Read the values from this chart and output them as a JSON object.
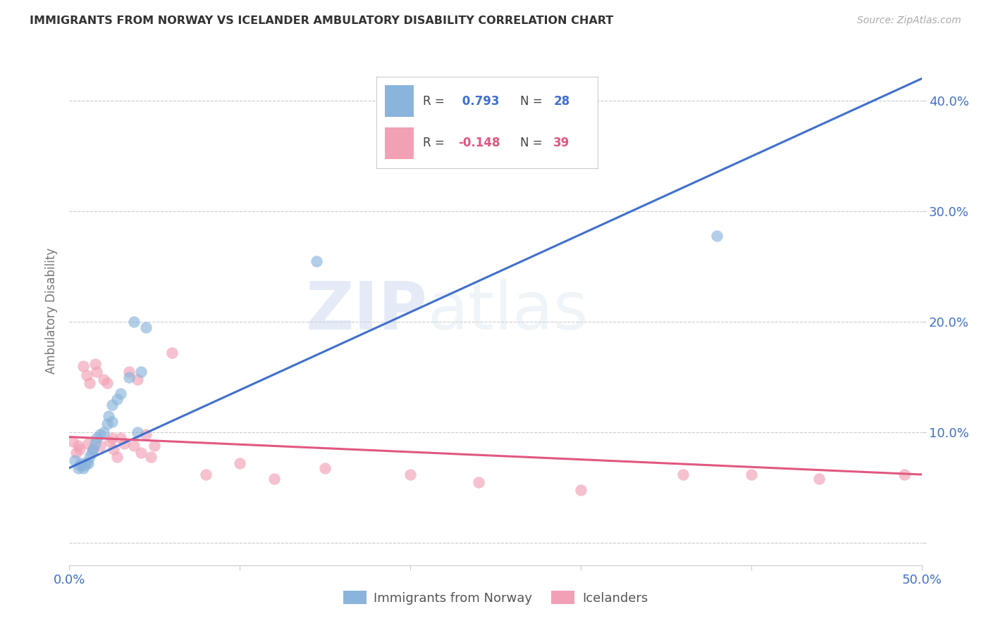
{
  "title": "IMMIGRANTS FROM NORWAY VS ICELANDER AMBULATORY DISABILITY CORRELATION CHART",
  "source": "Source: ZipAtlas.com",
  "ylabel": "Ambulatory Disability",
  "xlim": [
    0,
    0.5
  ],
  "ylim": [
    -0.02,
    0.44
  ],
  "xticks": [
    0.0,
    0.1,
    0.2,
    0.3,
    0.4,
    0.5
  ],
  "yticks": [
    0.0,
    0.1,
    0.2,
    0.3,
    0.4
  ],
  "xticklabels": [
    "0.0%",
    "",
    "",
    "",
    "",
    "50.0%"
  ],
  "yticklabels_right": [
    "",
    "10.0%",
    "20.0%",
    "30.0%",
    "40.0%"
  ],
  "norway_color": "#8ab4db",
  "iceland_color": "#f2a0b5",
  "norway_line_color": "#4070cc",
  "iceland_line_color": "#e05880",
  "norway_scatter_x": [
    0.003,
    0.005,
    0.006,
    0.007,
    0.008,
    0.009,
    0.01,
    0.011,
    0.012,
    0.013,
    0.014,
    0.015,
    0.016,
    0.018,
    0.02,
    0.022,
    0.023,
    0.025,
    0.025,
    0.028,
    0.03,
    0.035,
    0.038,
    0.04,
    0.042,
    0.045,
    0.145,
    0.38
  ],
  "norway_scatter_y": [
    0.075,
    0.068,
    0.07,
    0.072,
    0.068,
    0.07,
    0.073,
    0.072,
    0.078,
    0.082,
    0.085,
    0.09,
    0.095,
    0.098,
    0.1,
    0.108,
    0.115,
    0.11,
    0.125,
    0.13,
    0.135,
    0.15,
    0.2,
    0.1,
    0.155,
    0.195,
    0.255,
    0.278
  ],
  "iceland_scatter_x": [
    0.002,
    0.004,
    0.005,
    0.006,
    0.008,
    0.01,
    0.011,
    0.012,
    0.014,
    0.015,
    0.016,
    0.018,
    0.02,
    0.022,
    0.024,
    0.025,
    0.026,
    0.028,
    0.03,
    0.032,
    0.035,
    0.038,
    0.04,
    0.042,
    0.045,
    0.048,
    0.05,
    0.06,
    0.08,
    0.1,
    0.12,
    0.15,
    0.2,
    0.24,
    0.3,
    0.36,
    0.4,
    0.44,
    0.49
  ],
  "iceland_scatter_y": [
    0.092,
    0.082,
    0.088,
    0.085,
    0.16,
    0.152,
    0.09,
    0.145,
    0.085,
    0.162,
    0.155,
    0.088,
    0.148,
    0.145,
    0.092,
    0.095,
    0.085,
    0.078,
    0.095,
    0.09,
    0.155,
    0.088,
    0.148,
    0.082,
    0.098,
    0.078,
    0.088,
    0.172,
    0.062,
    0.072,
    0.058,
    0.068,
    0.062,
    0.055,
    0.048,
    0.062,
    0.062,
    0.058,
    0.062
  ],
  "background_color": "#ffffff",
  "grid_color": "#cccccc",
  "watermark_zip": "ZIP",
  "watermark_atlas": "atlas",
  "norway_line_x": [
    0.0,
    0.5
  ],
  "norway_line_y": [
    0.068,
    0.42
  ],
  "iceland_line_x": [
    0.0,
    0.5
  ],
  "iceland_line_y": [
    0.096,
    0.062
  ]
}
